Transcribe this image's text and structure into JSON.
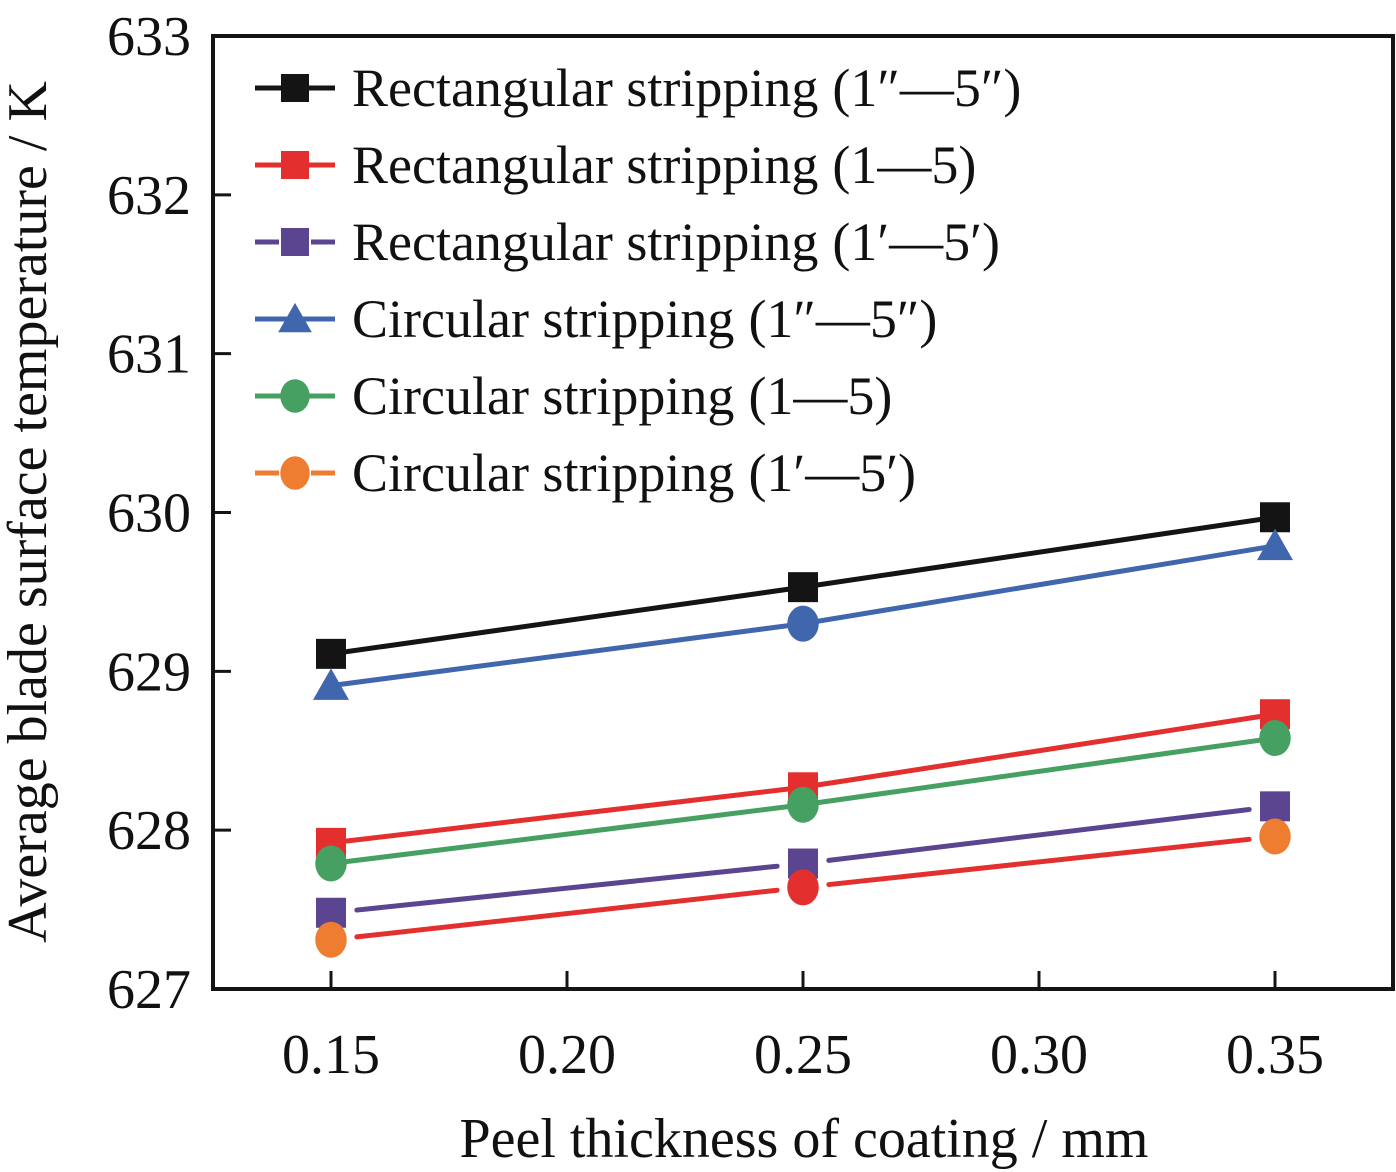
{
  "chart_data": {
    "type": "line",
    "title": "",
    "xlabel": "Peel thickness of coating / mm",
    "ylabel": "Average blade surface temperature / K",
    "xlim": [
      0.125,
      0.375
    ],
    "ylim": [
      627,
      633
    ],
    "x_ticks": [
      0.15,
      0.2,
      0.25,
      0.3,
      0.35
    ],
    "x_tick_labels": [
      "0.15",
      "0.20",
      "0.25",
      "0.30",
      "0.35"
    ],
    "y_ticks": [
      627,
      628,
      629,
      630,
      631,
      632,
      633
    ],
    "y_tick_labels": [
      "627",
      "628",
      "629",
      "630",
      "631",
      "632",
      "633"
    ],
    "grid": false,
    "legend_position": "top-left",
    "x": [
      0.15,
      0.25,
      0.35
    ],
    "series": [
      {
        "name": "Rectangular stripping (1″—5″)",
        "label_main": "Rectangular stripping",
        "label_range": "(1″—5″)",
        "marker": "square",
        "color": "#141414",
        "line_color": "#141414",
        "dashed_legend": false,
        "values": [
          629.11,
          629.53,
          629.97
        ]
      },
      {
        "name": "Rectangular stripping (1—5)",
        "label_main": "Rectangular stripping",
        "label_range": "(1—5)",
        "marker": "square",
        "color": "#e3302f",
        "line_color": "#e3302f",
        "dashed_legend": false,
        "values": [
          627.92,
          628.27,
          628.73
        ]
      },
      {
        "name": "Rectangular stripping (1′—5′)",
        "label_main": "Rectangular stripping",
        "label_range": "(1′—5′)",
        "marker": "square",
        "color": "#5b4590",
        "line_color": "#5b4590",
        "dashed_legend": true,
        "values": [
          627.48,
          627.79,
          628.15
        ]
      },
      {
        "name": "Circular stripping (1″—5″)",
        "label_main": "Circular stripping",
        "label_range": "(1″—5″)",
        "marker": "triangle",
        "color": "#4066ad",
        "line_color": "#4066ad",
        "dashed_legend": false,
        "values": [
          628.91,
          629.3,
          629.79
        ],
        "marker_overrides": {
          "1": "circle"
        }
      },
      {
        "name": "Circular stripping (1—5)",
        "label_main": "Circular stripping",
        "label_range": "(1—5)",
        "marker": "circle",
        "color": "#45a062",
        "line_color": "#45a062",
        "dashed_legend": false,
        "values": [
          627.79,
          628.16,
          628.58
        ]
      },
      {
        "name": "Circular stripping (1′—5′)",
        "label_main": "Circular stripping",
        "label_range": "(1′—5′)",
        "marker": "circle",
        "color": "#ee7d32",
        "line_color": "#e3302f",
        "dashed_legend": true,
        "values": [
          627.31,
          627.64,
          627.96
        ],
        "marker_color_overrides": {
          "1": "#e3302f"
        }
      }
    ]
  }
}
